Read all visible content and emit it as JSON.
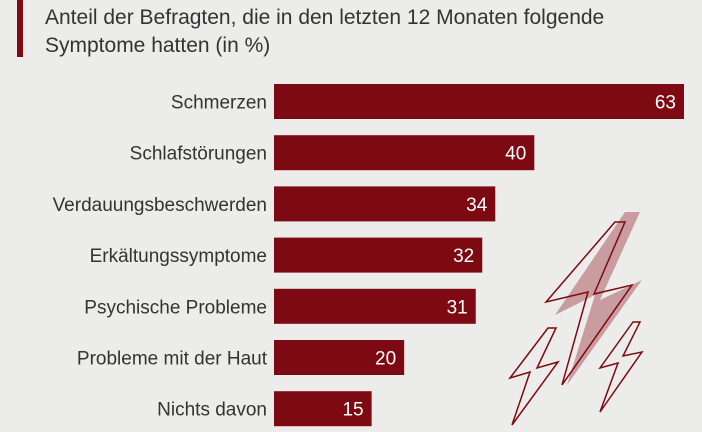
{
  "title": "Anteil der Befragten, die in den letzten 12 Monaten folgende Symptome hatten (in %)",
  "colors": {
    "bar": "#7d0a12",
    "background": "#ececeb",
    "label": "#333333",
    "value": "#ffffff",
    "decoration": "#c99ca0"
  },
  "decoration": {
    "icon": "lightning-bolts-icon"
  },
  "chart_data": {
    "type": "bar",
    "orientation": "horizontal",
    "categories": [
      "Schmerzen",
      "Schlafstörungen",
      "Verdauungsbeschwerden",
      "Erkältungssymptome",
      "Psychische Probleme",
      "Probleme mit der Haut",
      "Nichts davon"
    ],
    "values": [
      63,
      40,
      34,
      32,
      31,
      20,
      15
    ],
    "title": "Anteil der Befragten, die in den letzten 12 Monaten folgende Symptome hatten (in %)",
    "xlabel": "",
    "ylabel": "",
    "xlim": [
      0,
      63
    ],
    "grid": false,
    "legend": "none",
    "data_labels": true
  }
}
